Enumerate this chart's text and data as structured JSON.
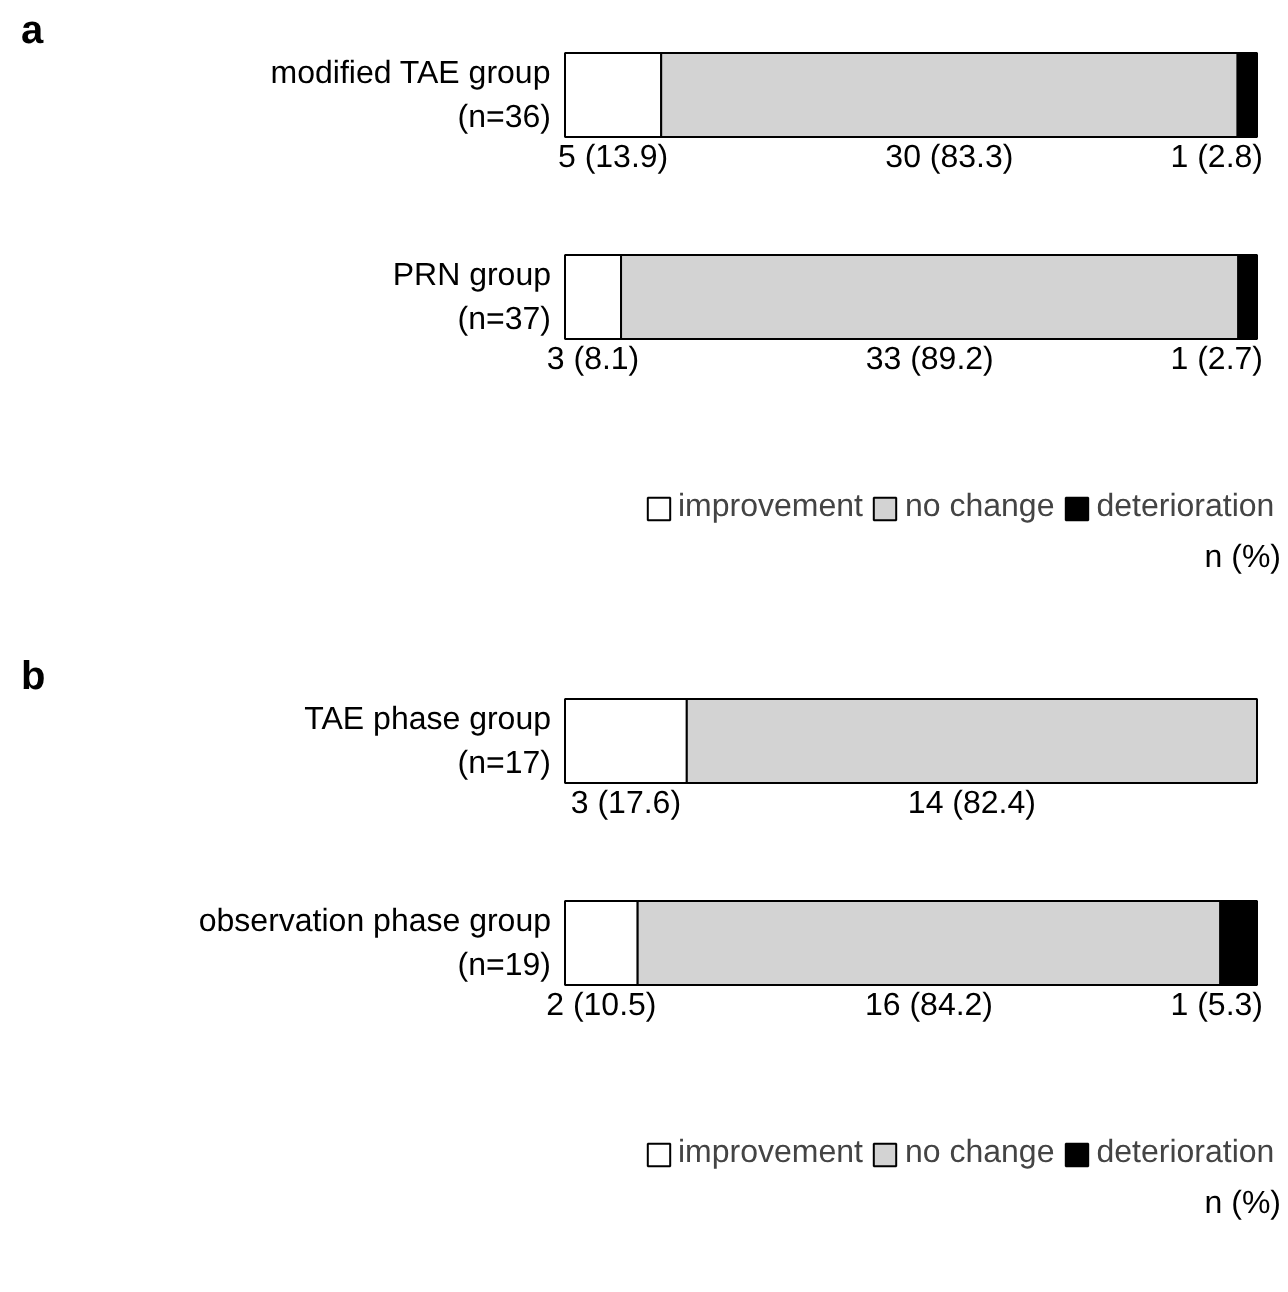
{
  "chart_data": [
    {
      "type": "bar",
      "title": "a",
      "orientation": "horizontal",
      "stacked": true,
      "legend": "bottom right",
      "annotations": [
        "n (%)"
      ],
      "categories": [
        "modified TAE group\n(n=36)",
        "PRN group\n(n=37)"
      ],
      "series": [
        {
          "name": "improvement",
          "color": "#ffffff",
          "values": [
            13.9,
            8.1
          ],
          "value_labels": [
            "5 (13.9)",
            "3 (8.1)"
          ]
        },
        {
          "name": "no change",
          "color": "#d3d3d3",
          "values": [
            83.3,
            89.2
          ],
          "value_labels": [
            "30 (83.3)",
            "33 (89.2)"
          ]
        },
        {
          "name": "deterioration",
          "color": "#000000",
          "values": [
            2.8,
            2.7
          ],
          "value_labels": [
            "1 (2.8)",
            "1 (2.7)"
          ]
        }
      ]
    },
    {
      "type": "bar",
      "title": "b",
      "orientation": "horizontal",
      "stacked": true,
      "legend": "bottom right",
      "annotations": [
        "n (%)"
      ],
      "categories": [
        "TAE phase group\n(n=17)",
        "observation phase group\n(n=19)"
      ],
      "series": [
        {
          "name": "improvement",
          "color": "#ffffff",
          "values": [
            17.6,
            10.5
          ],
          "value_labels": [
            "3 (17.6)",
            "2 (10.5)"
          ]
        },
        {
          "name": "no change",
          "color": "#d3d3d3",
          "values": [
            82.4,
            84.2
          ],
          "value_labels": [
            "14 (82.4)",
            "16 (84.2)"
          ]
        },
        {
          "name": "deterioration",
          "color": "#000000",
          "values": [
            null,
            5.3
          ],
          "value_labels": [
            null,
            "1 (5.3)"
          ]
        }
      ]
    }
  ]
}
